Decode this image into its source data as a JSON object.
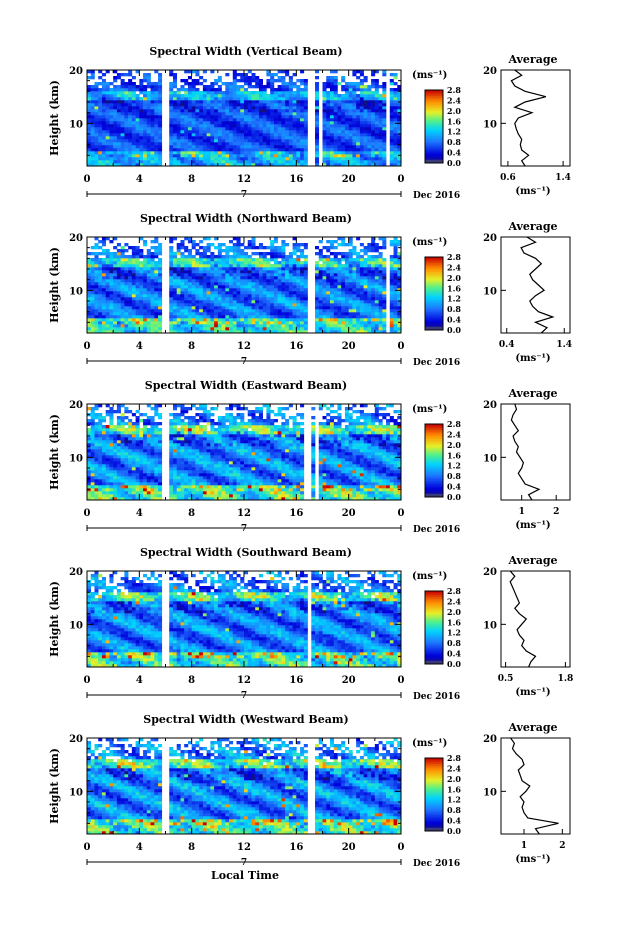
{
  "figure": {
    "xlabel": "Local Time",
    "date_label": "Dec 2016",
    "day_label": "7",
    "ylabel": "Height (km)",
    "unit_label": "(ms⁻¹)",
    "avg_unit_label": "(ms⁻¹)"
  },
  "chart_data": [
    {
      "type": "heatmap",
      "title": "Spectral Width (Vertical Beam)",
      "xlabel": "Local Time",
      "ylabel": "Height (km)",
      "xlim": [
        0,
        24
      ],
      "ylim": [
        2,
        20
      ],
      "x_ticks": [
        "0",
        "4",
        "8",
        "12",
        "16",
        "20",
        "0"
      ],
      "y_ticks": [
        "10",
        "20"
      ],
      "colorbar": {
        "label": "(ms⁻¹)",
        "ticks": [
          "0.0",
          "0.4",
          "0.8",
          "1.2",
          "1.6",
          "2.0",
          "2.4",
          "2.8"
        ],
        "range": [
          0,
          2.8
        ]
      },
      "gaps": [
        [
          5.6,
          6.3
        ],
        [
          16.9,
          17.3
        ],
        [
          17.6,
          18.0
        ],
        [
          22.8,
          23.1
        ]
      ],
      "intensity": 0.8,
      "average": {
        "title": "Average",
        "xticks": [
          "0.6",
          "1.4"
        ],
        "xlim": [
          0.5,
          1.5
        ],
        "ylim": [
          2,
          20
        ],
        "height": [
          2,
          3,
          4,
          5,
          6,
          7,
          8,
          9,
          10,
          11,
          12,
          13,
          14,
          15,
          16,
          17,
          18,
          19,
          20
        ],
        "value": [
          0.85,
          0.8,
          0.9,
          0.8,
          0.78,
          0.8,
          0.75,
          0.72,
          0.7,
          0.75,
          0.95,
          0.7,
          0.85,
          1.15,
          0.85,
          0.7,
          0.65,
          0.8,
          0.7
        ]
      }
    },
    {
      "type": "heatmap",
      "title": "Spectral Width (Northward Beam)",
      "xlabel": "Local Time",
      "ylabel": "Height (km)",
      "xlim": [
        0,
        24
      ],
      "ylim": [
        2,
        20
      ],
      "x_ticks": [
        "0",
        "4",
        "8",
        "12",
        "16",
        "20",
        "0"
      ],
      "y_ticks": [
        "10",
        "20"
      ],
      "colorbar": {
        "label": "(ms⁻¹)",
        "ticks": [
          "0.0",
          "0.4",
          "0.8",
          "1.2",
          "1.6",
          "2.0",
          "2.4",
          "2.8"
        ],
        "range": [
          0,
          2.8
        ]
      },
      "gaps": [
        [
          5.6,
          6.3
        ],
        [
          17.0,
          17.4
        ],
        [
          22.9,
          23.2
        ]
      ],
      "intensity": 1.0,
      "average": {
        "title": "Average",
        "xticks": [
          "0.4",
          "1.4"
        ],
        "xlim": [
          0.3,
          1.5
        ],
        "ylim": [
          2,
          20
        ],
        "height": [
          2,
          3,
          4,
          5,
          6,
          7,
          8,
          9,
          10,
          11,
          12,
          13,
          14,
          15,
          16,
          17,
          18,
          19,
          20
        ],
        "value": [
          1.0,
          1.1,
          0.9,
          1.2,
          0.95,
          0.85,
          0.8,
          0.9,
          1.05,
          0.95,
          0.85,
          0.8,
          0.9,
          1.0,
          0.9,
          0.7,
          0.65,
          0.9,
          0.75
        ]
      }
    },
    {
      "type": "heatmap",
      "title": "Spectral Width (Eastward Beam)",
      "xlabel": "Local Time",
      "ylabel": "Height (km)",
      "xlim": [
        0,
        24
      ],
      "ylim": [
        2,
        20
      ],
      "x_ticks": [
        "0",
        "4",
        "8",
        "12",
        "16",
        "20",
        "0"
      ],
      "y_ticks": [
        "10",
        "20"
      ],
      "colorbar": {
        "label": "(ms⁻¹)",
        "ticks": [
          "0.0",
          "0.4",
          "0.8",
          "1.2",
          "1.6",
          "2.0",
          "2.4",
          "2.8"
        ],
        "range": [
          0,
          2.8
        ]
      },
      "gaps": [
        [
          5.7,
          6.2
        ],
        [
          16.7,
          17.1
        ],
        [
          17.5,
          17.8
        ]
      ],
      "intensity": 1.1,
      "average": {
        "title": "Average",
        "xticks": [
          "1",
          "2"
        ],
        "xlim": [
          0.4,
          2.4
        ],
        "ylim": [
          2,
          20
        ],
        "height": [
          2,
          3,
          4,
          5,
          6,
          7,
          8,
          9,
          10,
          11,
          12,
          13,
          14,
          15,
          16,
          17,
          18,
          19,
          20
        ],
        "value": [
          1.3,
          1.2,
          1.5,
          1.1,
          1.0,
          0.9,
          1.0,
          1.05,
          0.95,
          0.85,
          0.9,
          0.8,
          0.75,
          0.9,
          0.8,
          0.7,
          0.75,
          0.85,
          0.8
        ]
      }
    },
    {
      "type": "heatmap",
      "title": "Spectral Width (Southward Beam)",
      "xlabel": "Local Time",
      "ylabel": "Height (km)",
      "xlim": [
        0,
        24
      ],
      "ylim": [
        2,
        20
      ],
      "x_ticks": [
        "0",
        "4",
        "8",
        "12",
        "16",
        "20",
        "0"
      ],
      "y_ticks": [
        "10",
        "20"
      ],
      "colorbar": {
        "label": "(ms⁻¹)",
        "ticks": [
          "0.0",
          "0.4",
          "0.8",
          "1.2",
          "1.6",
          "2.0",
          "2.4",
          "2.8"
        ],
        "range": [
          0,
          2.8
        ]
      },
      "gaps": [
        [
          5.6,
          6.3
        ],
        [
          16.8,
          17.2
        ]
      ],
      "intensity": 1.05,
      "average": {
        "title": "Average",
        "xticks": [
          "0.5",
          "1.8"
        ],
        "xlim": [
          0.4,
          1.9
        ],
        "ylim": [
          2,
          20
        ],
        "height": [
          2,
          3,
          4,
          5,
          6,
          7,
          8,
          9,
          10,
          11,
          12,
          13,
          14,
          15,
          16,
          17,
          18,
          19,
          20
        ],
        "value": [
          1.0,
          1.05,
          1.15,
          0.95,
          0.85,
          0.9,
          0.8,
          0.75,
          0.85,
          0.95,
          0.8,
          0.7,
          0.8,
          0.75,
          0.7,
          0.65,
          0.6,
          0.7,
          0.6
        ]
      }
    },
    {
      "type": "heatmap",
      "title": "Spectral Width (Westward Beam)",
      "xlabel": "Local Time",
      "ylabel": "Height (km)",
      "xlim": [
        0,
        24
      ],
      "ylim": [
        2,
        20
      ],
      "x_ticks": [
        "0",
        "4",
        "8",
        "12",
        "16",
        "20",
        "0"
      ],
      "y_ticks": [
        "10",
        "20"
      ],
      "colorbar": {
        "label": "(ms⁻¹)",
        "ticks": [
          "0.0",
          "0.4",
          "0.8",
          "1.2",
          "1.6",
          "2.0",
          "2.4",
          "2.8"
        ],
        "range": [
          0,
          2.8
        ]
      },
      "gaps": [
        [
          5.6,
          6.3
        ],
        [
          17.0,
          17.4
        ]
      ],
      "intensity": 1.1,
      "average": {
        "title": "Average",
        "xticks": [
          "1",
          "2"
        ],
        "xlim": [
          0.4,
          2.2
        ],
        "ylim": [
          2,
          20
        ],
        "height": [
          2,
          3,
          4,
          5,
          6,
          7,
          8,
          9,
          10,
          11,
          12,
          13,
          14,
          15,
          16,
          17,
          18,
          19,
          20
        ],
        "value": [
          1.4,
          1.3,
          1.9,
          1.1,
          1.0,
          0.95,
          1.0,
          0.9,
          1.05,
          1.15,
          0.95,
          0.9,
          0.85,
          1.0,
          0.95,
          0.8,
          0.7,
          0.75,
          0.65
        ]
      }
    }
  ]
}
